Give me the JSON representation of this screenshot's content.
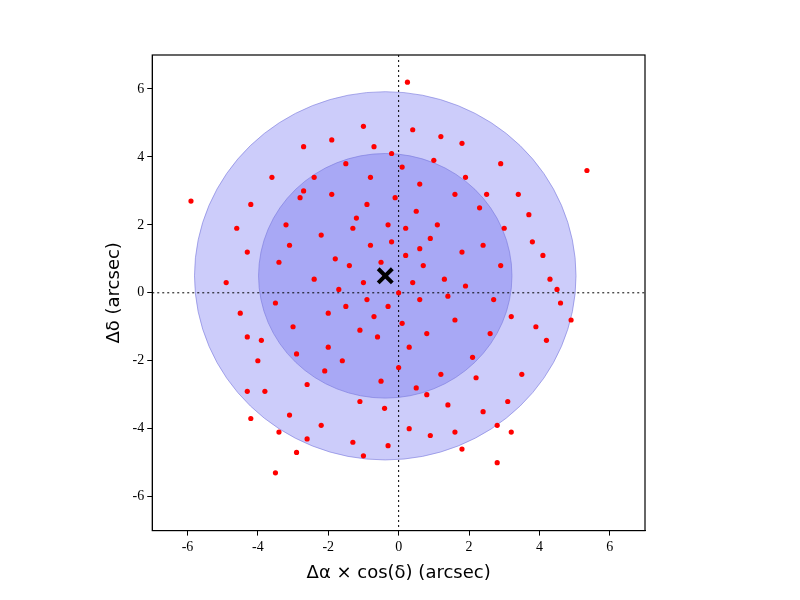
{
  "chart_data": {
    "type": "scatter",
    "xlabel": "Δα × cos(δ) (arcsec)",
    "ylabel": "Δδ (arcsec)",
    "color": "#ff0000",
    "marker": "o",
    "x": [
      -0.4,
      0.2,
      -1.0,
      0.6,
      -0.8,
      0.9,
      -1.5,
      0.1,
      -0.3,
      1.3,
      -1.8,
      -0.6,
      0.5,
      -1.2,
      1.6,
      -2.0,
      0.0,
      -0.9,
      0.7,
      -0.2,
      1.1,
      -1.4,
      0.3,
      -0.7,
      1.8,
      -2.2,
      -0.1,
      0.4,
      -1.1,
      1.4,
      -0.5,
      0.8,
      -1.7,
      0.2,
      -0.9,
      1.9,
      -2.4,
      -0.3,
      0.6,
      -1.3,
      2.3,
      -2.8,
      2.6,
      -3.0,
      0.1,
      -1.5,
      1.9,
      -0.5,
      1.2,
      -2.1,
      2.9,
      -3.4,
      0.8,
      -1.1,
      2.2,
      -2.6,
      3.0,
      -3.2,
      1.0,
      -2.4,
      2.7,
      -3.5,
      0.0,
      -0.8,
      1.6,
      -2.0,
      2.4,
      -1.6,
      0.5,
      -3.1,
      3.2,
      -2.9,
      1.4,
      -0.2,
      0.6,
      -2.7,
      2.1,
      -1.9,
      2.5,
      -0.4,
      3.8,
      -4.3,
      3.5,
      -4.0,
      0.4,
      -1.0,
      1.8,
      -2.7,
      2.9,
      -3.6,
      3.9,
      -4.5,
      2.4,
      -2.2,
      0.9,
      -1.3,
      4.3,
      -4.6,
      3.4,
      -3.8,
      1.6,
      -0.3,
      4.1,
      -4.2,
      3.1,
      -3.1,
      -1.9,
      1.2,
      4.6,
      -4.9,
      2.8,
      -2.6,
      3.7,
      -3.9,
      -0.7,
      0.3,
      -5.9,
      0.25,
      5.35,
      -3.5,
      -1.0,
      2.8,
      4.9,
      4.5,
      -4.2,
      -4.3,
      -2.9,
      3.2,
      -3.4,
      4.2,
      -4.3,
      1.8
    ],
    "values": [
      0.5,
      1.1,
      0.3,
      -0.2,
      1.4,
      1.6,
      -0.4,
      -0.9,
      2.0,
      0.4,
      1.0,
      -1.3,
      2.4,
      2.2,
      -0.8,
      -0.6,
      0.0,
      -0.2,
      0.8,
      1.5,
      2.0,
      0.8,
      -1.6,
      -0.7,
      1.2,
      1.7,
      2.8,
      0.3,
      -1.1,
      -0.1,
      0.9,
      -1.2,
      0.1,
      1.9,
      2.6,
      0.2,
      0.4,
      -0.4,
      1.3,
      1.9,
      2.5,
      2.8,
      -1.2,
      -1.0,
      3.7,
      3.8,
      3.4,
      -2.6,
      -2.4,
      -2.3,
      0.8,
      0.9,
      -3.0,
      -3.2,
      -2.5,
      -2.7,
      1.9,
      2.0,
      3.9,
      3.4,
      -0.2,
      -0.3,
      -2.2,
      3.4,
      2.9,
      -1.6,
      1.4,
      -2.0,
      -2.8,
      1.4,
      -0.7,
      -1.8,
      -3.3,
      4.1,
      3.2,
      3.0,
      -1.9,
      2.9,
      2.9,
      -3.4,
      1.5,
      1.2,
      -2.4,
      -2.0,
      4.8,
      4.9,
      4.4,
      4.3,
      3.8,
      3.4,
      -1.0,
      -0.6,
      -3.5,
      -3.9,
      -4.2,
      -4.4,
      0.4,
      1.9,
      2.9,
      -2.9,
      -4.1,
      -4.5,
      1.1,
      2.6,
      -3.2,
      -3.6,
      4.5,
      4.6,
      -0.3,
      0.3,
      -3.9,
      -4.3,
      2.3,
      -1.4,
      4.3,
      -4.0,
      2.7,
      6.2,
      3.6,
      -5.3,
      -4.8,
      -5.0,
      -0.8,
      0.1,
      -3.7,
      -1.3,
      -4.7,
      -4.1,
      -4.1,
      -1.4,
      -2.9,
      -4.6
    ],
    "center": {
      "x": -0.38,
      "y": 0.5,
      "color": "#000000",
      "marker": "x"
    },
    "circles": [
      {
        "x": -0.38,
        "y": 0.5,
        "r": 5.42,
        "color": "#ccccfa"
      },
      {
        "x": -0.38,
        "y": 0.5,
        "r": 3.6,
        "color": "#a8a8f5"
      }
    ],
    "vlines": [
      0
    ],
    "hlines": [
      0
    ],
    "xlim": [
      -7,
      7
    ],
    "ylim": [
      -7,
      7
    ],
    "xticks": [
      -6,
      -4,
      -2,
      0,
      2,
      4,
      6
    ],
    "yticks": [
      -6,
      -4,
      -2,
      0,
      2,
      4,
      6
    ],
    "grid": false
  }
}
